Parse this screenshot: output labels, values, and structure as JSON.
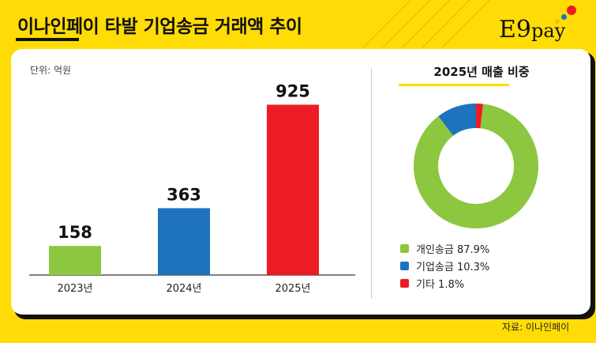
{
  "header": {
    "title": "이나인페이 타발 기업송금 거래액 추이",
    "logo_main": "E9",
    "logo_sub": "pay"
  },
  "unit_label": "단위: 억원",
  "source_label": "자료: 이나인페이",
  "colors": {
    "background": "#FFDC05",
    "green": "#8DC63F",
    "blue": "#1E73BE",
    "red": "#ED1C24",
    "logo_dot_red": "#ED1C24",
    "logo_dot_blue": "#1E73BE",
    "logo_dot_yellow": "#FFB800"
  },
  "chart_data": [
    {
      "type": "bar",
      "categories": [
        "2023년",
        "2024년",
        "2025년"
      ],
      "values": [
        158,
        363,
        925
      ],
      "colors": [
        "#8DC63F",
        "#1E73BE",
        "#ED1C24"
      ],
      "value_labels": [
        "158",
        "363",
        "925"
      ],
      "ylim": [
        0,
        1000
      ],
      "grid": false
    },
    {
      "type": "pie",
      "style": "donut",
      "title": "2025년 매출 비중",
      "categories": [
        "개인송금",
        "기업송금",
        "기타"
      ],
      "values": [
        87.9,
        10.3,
        1.8
      ],
      "colors": [
        "#8DC63F",
        "#1E73BE",
        "#ED1C24"
      ],
      "legend": [
        "개인송금 87.9%",
        "기업송금 10.3%",
        "기타 1.8%"
      ],
      "legend_position": "bottom"
    }
  ]
}
